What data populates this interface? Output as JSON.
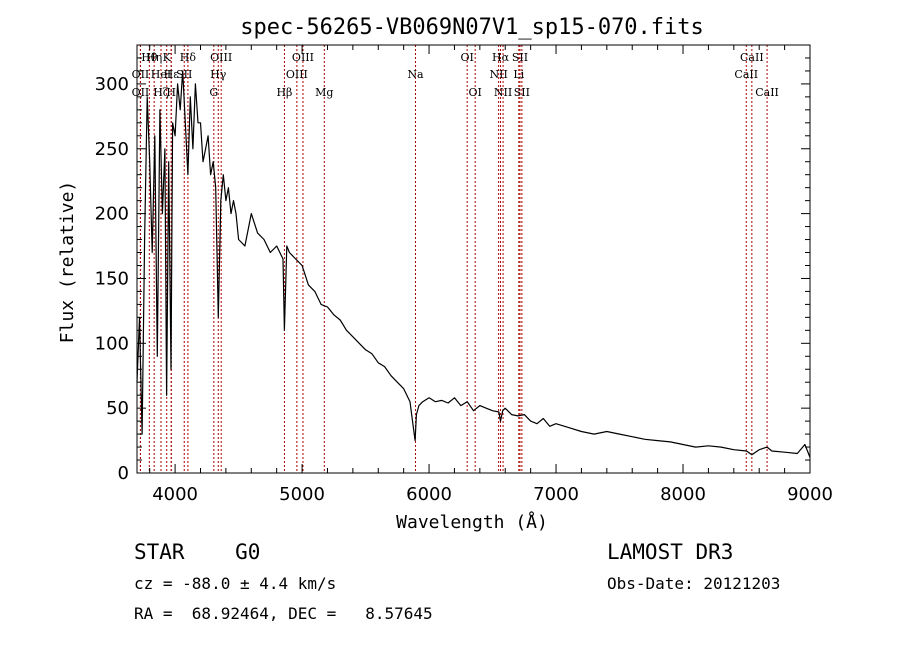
{
  "chart_data": {
    "type": "line",
    "title": "spec-56265-VB069N07V1_sp15-070.fits",
    "xlabel": "Wavelength (Å)",
    "ylabel": "Flux (relative)",
    "xlim": [
      3700,
      9000
    ],
    "ylim": [
      0,
      330
    ],
    "x_ticks": [
      4000,
      5000,
      6000,
      7000,
      8000,
      9000
    ],
    "y_ticks": [
      0,
      50,
      100,
      150,
      200,
      250,
      300
    ],
    "x_minor_step": 200,
    "y_minor_step": 10,
    "series": [
      {
        "name": "spectrum",
        "color": "#000000",
        "x": [
          3700,
          3720,
          3740,
          3760,
          3780,
          3800,
          3820,
          3840,
          3860,
          3880,
          3900,
          3920,
          3933,
          3950,
          3968,
          3980,
          4000,
          4020,
          4040,
          4060,
          4080,
          4101,
          4120,
          4140,
          4160,
          4180,
          4200,
          4220,
          4240,
          4260,
          4280,
          4300,
          4320,
          4340,
          4360,
          4380,
          4400,
          4420,
          4440,
          4460,
          4480,
          4500,
          4550,
          4600,
          4650,
          4700,
          4750,
          4800,
          4850,
          4861,
          4880,
          4900,
          4950,
          5000,
          5050,
          5100,
          5150,
          5200,
          5250,
          5300,
          5350,
          5400,
          5450,
          5500,
          5550,
          5600,
          5650,
          5700,
          5750,
          5800,
          5850,
          5870,
          5890,
          5900,
          5920,
          5950,
          6000,
          6050,
          6100,
          6150,
          6200,
          6250,
          6300,
          6350,
          6400,
          6450,
          6500,
          6550,
          6563,
          6580,
          6600,
          6650,
          6700,
          6750,
          6800,
          6850,
          6900,
          6950,
          7000,
          7100,
          7200,
          7300,
          7400,
          7500,
          7600,
          7700,
          7800,
          7900,
          8000,
          8100,
          8200,
          8300,
          8400,
          8500,
          8542,
          8600,
          8662,
          8700,
          8800,
          8900,
          8960,
          9000
        ],
        "y": [
          70,
          120,
          30,
          180,
          290,
          240,
          170,
          260,
          90,
          280,
          200,
          250,
          60,
          240,
          80,
          270,
          260,
          300,
          280,
          310,
          270,
          230,
          290,
          250,
          300,
          270,
          270,
          240,
          250,
          260,
          230,
          240,
          220,
          120,
          210,
          230,
          210,
          220,
          200,
          210,
          200,
          180,
          175,
          200,
          185,
          180,
          170,
          175,
          165,
          110,
          175,
          170,
          165,
          160,
          145,
          140,
          130,
          128,
          122,
          118,
          110,
          105,
          100,
          95,
          92,
          85,
          82,
          75,
          70,
          65,
          55,
          40,
          25,
          45,
          52,
          55,
          58,
          55,
          56,
          54,
          58,
          52,
          55,
          48,
          52,
          50,
          48,
          47,
          40,
          48,
          50,
          45,
          44,
          45,
          40,
          38,
          42,
          36,
          38,
          35,
          32,
          30,
          32,
          30,
          28,
          26,
          25,
          24,
          22,
          20,
          21,
          20,
          18,
          17,
          14,
          18,
          20,
          17,
          16,
          15,
          22,
          12
        ]
      }
    ],
    "line_markers": [
      {
        "name": "OII",
        "x": 3727,
        "row": 3
      },
      {
        "name": "Hθ",
        "x": 3797,
        "row": 1
      },
      {
        "name": "OII",
        "x": 3727,
        "row": 2
      },
      {
        "name": "Hη",
        "x": 3835,
        "row": 1
      },
      {
        "name": "HeI",
        "x": 3889,
        "row": 2
      },
      {
        "name": "Hζ",
        "x": 3889,
        "row": 3
      },
      {
        "name": "K",
        "x": 3934,
        "row": 1
      },
      {
        "name": "Hε",
        "x": 3970,
        "row": 2
      },
      {
        "name": "H",
        "x": 3969,
        "row": 3
      },
      {
        "name": "Hδ",
        "x": 4101,
        "row": 1
      },
      {
        "name": "SII",
        "x": 4072,
        "row": 2
      },
      {
        "name": "OIII",
        "x": 4363,
        "row": 1
      },
      {
        "name": "Hγ",
        "x": 4340,
        "row": 2
      },
      {
        "name": "G",
        "x": 4305,
        "row": 3
      },
      {
        "name": "Hβ",
        "x": 4861,
        "row": 3
      },
      {
        "name": "OIII",
        "x": 5007,
        "row": 1
      },
      {
        "name": "OIII",
        "x": 4959,
        "row": 2
      },
      {
        "name": "Mg",
        "x": 5175,
        "row": 3
      },
      {
        "name": "Na",
        "x": 5893,
        "row": 2
      },
      {
        "name": "OI",
        "x": 6300,
        "row": 1
      },
      {
        "name": "OI",
        "x": 6363,
        "row": 3
      },
      {
        "name": "Hα",
        "x": 6563,
        "row": 1
      },
      {
        "name": "NII",
        "x": 6548,
        "row": 2
      },
      {
        "name": "NII",
        "x": 6583,
        "row": 3
      },
      {
        "name": "SII",
        "x": 6716,
        "row": 1
      },
      {
        "name": "Li",
        "x": 6707,
        "row": 2
      },
      {
        "name": "SII",
        "x": 6731,
        "row": 3
      },
      {
        "name": "CaII",
        "x": 8542,
        "row": 1
      },
      {
        "name": "CaII",
        "x": 8498,
        "row": 2
      },
      {
        "name": "CaII",
        "x": 8662,
        "row": 3
      }
    ],
    "marker_color": "#aa0000"
  },
  "footer": {
    "object_class": "STAR    G0",
    "survey": "LAMOST DR3",
    "cz": "cz = -88.0 ± 4.4 km/s",
    "obs_date": "Obs-Date: 20121203",
    "coords": "RA =  68.92464, DEC =   8.57645"
  }
}
